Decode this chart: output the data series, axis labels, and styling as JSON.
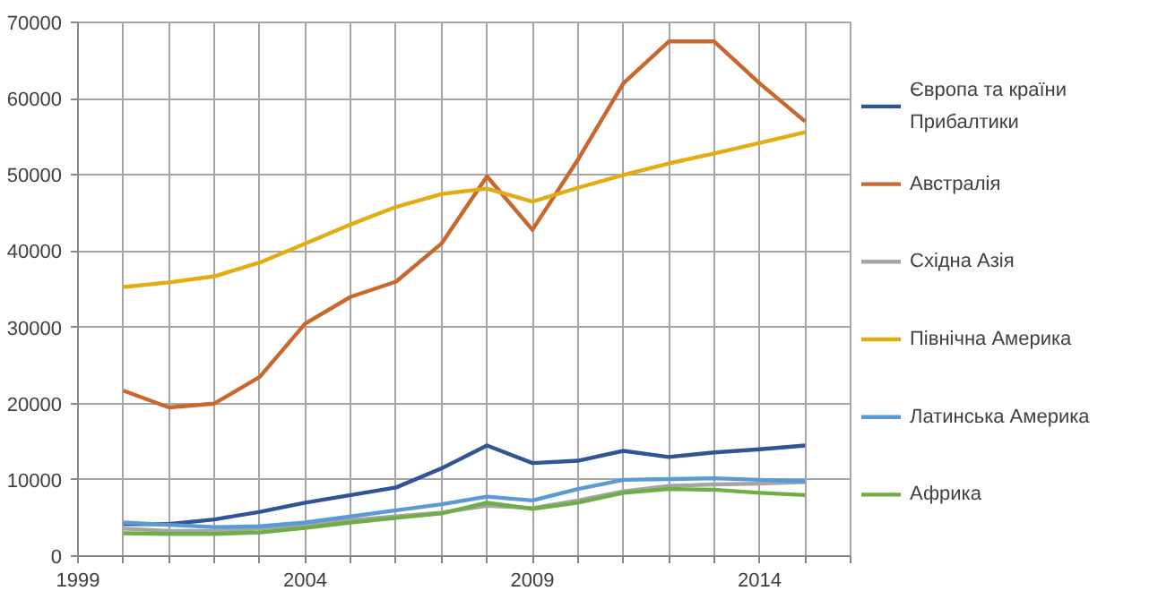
{
  "chart_data": {
    "type": "line",
    "x": [
      2000,
      2001,
      2002,
      2003,
      2004,
      2005,
      2006,
      2007,
      2008,
      2009,
      2010,
      2011,
      2012,
      2013,
      2014,
      2015
    ],
    "series": [
      {
        "name": "Європа та країни Прибалтики",
        "color": "#2f5597",
        "values": [
          4200,
          4200,
          4800,
          5800,
          7000,
          8000,
          9000,
          11500,
          14500,
          12200,
          12500,
          13800,
          13000,
          13600,
          14000,
          14500
        ]
      },
      {
        "name": "Австралія",
        "color": "#c8682f",
        "values": [
          21700,
          19500,
          20000,
          23500,
          30500,
          34000,
          36000,
          41000,
          49800,
          42800,
          52000,
          62000,
          67500,
          67500,
          62000,
          57000
        ]
      },
      {
        "name": "Східна Азія",
        "color": "#a5a5a5",
        "values": [
          3600,
          3300,
          3300,
          3600,
          4100,
          4700,
          5200,
          5700,
          6600,
          6300,
          7300,
          8500,
          9200,
          9400,
          9500,
          9700
        ]
      },
      {
        "name": "Північна Америка",
        "color": "#e3ac12",
        "values": [
          35300,
          35900,
          36700,
          38500,
          41000,
          43500,
          45800,
          47500,
          48200,
          46500,
          48300,
          50000,
          51500,
          52800,
          54200,
          55600
        ]
      },
      {
        "name": "Латинська Америка",
        "color": "#5b9bd5",
        "values": [
          4400,
          4100,
          3800,
          3900,
          4400,
          5200,
          6000,
          6800,
          7800,
          7300,
          8800,
          10000,
          10100,
          10200,
          10000,
          9800
        ]
      },
      {
        "name": "Африка",
        "color": "#70ad47",
        "values": [
          3000,
          2900,
          2900,
          3100,
          3700,
          4400,
          5000,
          5600,
          7000,
          6200,
          7000,
          8300,
          8800,
          8700,
          8300,
          8000
        ]
      }
    ],
    "xlim": [
      1999,
      2016
    ],
    "xticks": [
      1999,
      {
        "value": 2000,
        "label": null
      },
      {
        "value": 2001,
        "label": null
      },
      {
        "value": 2002,
        "label": null
      },
      {
        "value": 2003,
        "label": null
      },
      2004,
      {
        "value": 2005,
        "label": null
      },
      {
        "value": 2006,
        "label": null
      },
      {
        "value": 2007,
        "label": null
      },
      {
        "value": 2008,
        "label": null
      },
      2009,
      {
        "value": 2010,
        "label": null
      },
      {
        "value": 2011,
        "label": null
      },
      {
        "value": 2012,
        "label": null
      },
      {
        "value": 2013,
        "label": null
      },
      2014,
      {
        "value": 2015,
        "label": null
      },
      {
        "value": 2016,
        "label": null
      }
    ],
    "ylim": [
      0,
      70000
    ],
    "yticks": [
      0,
      10000,
      20000,
      30000,
      40000,
      50000,
      60000,
      70000
    ],
    "grid": true,
    "legend": "right",
    "line_style": "solid",
    "marker": "none"
  }
}
